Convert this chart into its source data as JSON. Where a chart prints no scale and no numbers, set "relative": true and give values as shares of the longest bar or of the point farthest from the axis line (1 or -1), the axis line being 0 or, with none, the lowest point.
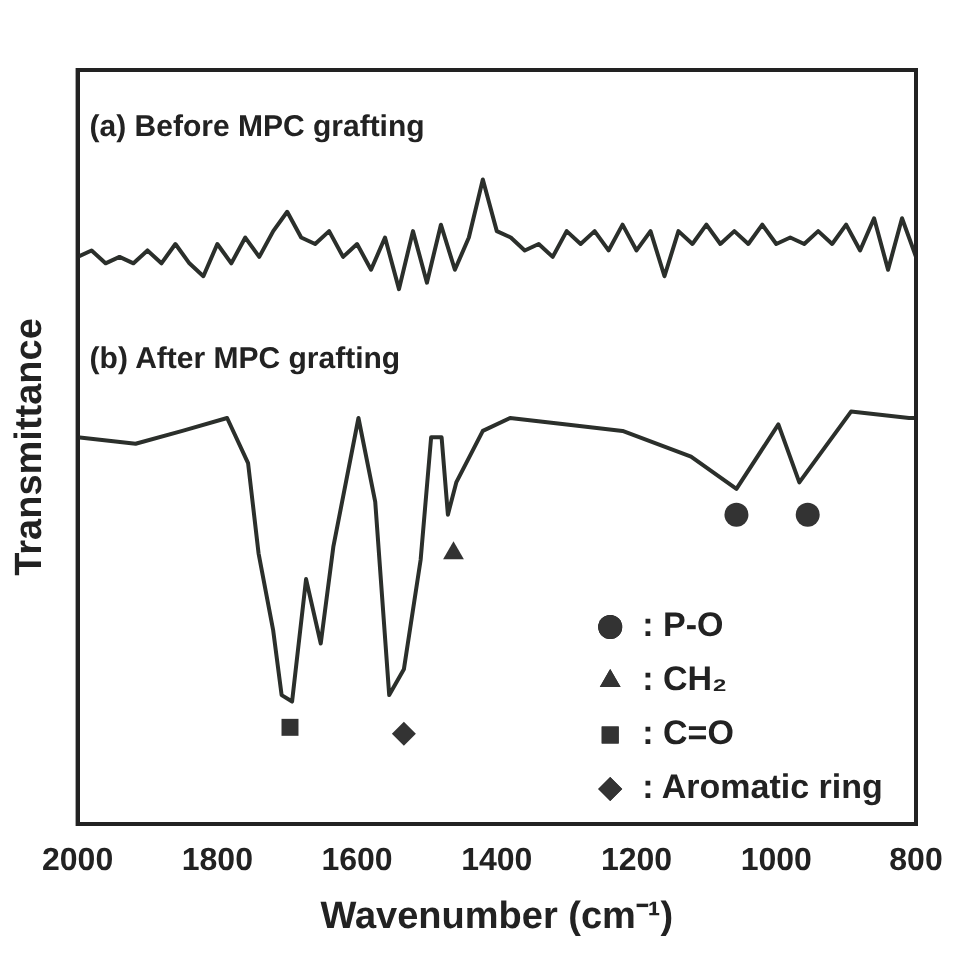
{
  "chart_data": {
    "type": "line",
    "relative": true,
    "xlabel": "Wavenumber (cm⁻¹)",
    "ylabel": "Transmittance",
    "xlim": [
      2000,
      800
    ],
    "xticks": [
      2000,
      1800,
      1600,
      1400,
      1200,
      1000,
      800
    ],
    "grid": false,
    "legend": "bottom right",
    "line_style": "solid",
    "marker": "none",
    "series": [
      {
        "name": "(a) Before MPC grafting",
        "color": "#2b2f2b",
        "x": [
          2000,
          1980,
          1960,
          1940,
          1920,
          1900,
          1880,
          1860,
          1840,
          1820,
          1800,
          1780,
          1760,
          1740,
          1720,
          1700,
          1680,
          1660,
          1640,
          1620,
          1600,
          1580,
          1560,
          1540,
          1520,
          1500,
          1480,
          1460,
          1440,
          1420,
          1400,
          1380,
          1360,
          1340,
          1320,
          1300,
          1280,
          1260,
          1240,
          1220,
          1200,
          1180,
          1160,
          1140,
          1120,
          1100,
          1080,
          1060,
          1040,
          1020,
          1000,
          980,
          960,
          940,
          920,
          900,
          880,
          860,
          840,
          820,
          800
        ],
        "values": [
          0.88,
          0.89,
          0.87,
          0.88,
          0.87,
          0.89,
          0.87,
          0.9,
          0.87,
          0.85,
          0.9,
          0.87,
          0.91,
          0.88,
          0.92,
          0.95,
          0.91,
          0.9,
          0.92,
          0.88,
          0.9,
          0.86,
          0.91,
          0.83,
          0.92,
          0.84,
          0.93,
          0.86,
          0.91,
          1.0,
          0.92,
          0.91,
          0.89,
          0.9,
          0.88,
          0.92,
          0.9,
          0.92,
          0.89,
          0.93,
          0.89,
          0.92,
          0.85,
          0.92,
          0.9,
          0.93,
          0.9,
          0.92,
          0.9,
          0.93,
          0.9,
          0.91,
          0.9,
          0.92,
          0.9,
          0.93,
          0.89,
          0.94,
          0.86,
          0.94,
          0.88
        ]
      },
      {
        "name": "(b) After MPC grafting",
        "color": "#2b2f2b",
        "x": [
          2000,
          1917,
          1850,
          1786,
          1756,
          1741,
          1720,
          1708,
          1693,
          1673,
          1652,
          1634,
          1598,
          1574,
          1554,
          1533,
          1509,
          1494,
          1479,
          1470,
          1458,
          1420,
          1381,
          1300,
          1220,
          1122,
          1057,
          997,
          967,
          893,
          810,
          800
        ],
        "values": [
          0.6,
          0.59,
          0.61,
          0.63,
          0.56,
          0.42,
          0.3,
          0.2,
          0.19,
          0.38,
          0.28,
          0.43,
          0.63,
          0.5,
          0.2,
          0.24,
          0.41,
          0.6,
          0.6,
          0.48,
          0.53,
          0.61,
          0.63,
          0.62,
          0.61,
          0.57,
          0.52,
          0.62,
          0.53,
          0.64,
          0.63,
          0.63
        ]
      },
      {
        "name": ": P-O",
        "type": "scatter",
        "marker": "circle",
        "color": "#333333",
        "x": [
          1057,
          955
        ],
        "values": [
          0.48,
          0.48
        ]
      },
      {
        "name": ": CH₂",
        "type": "scatter",
        "marker": "triangle",
        "color": "#333333",
        "x": [
          1462
        ],
        "values": [
          0.42
        ]
      },
      {
        "name": ": C=O",
        "type": "scatter",
        "marker": "square",
        "color": "#333333",
        "x": [
          1696
        ],
        "values": [
          0.15
        ]
      },
      {
        "name": ": Aromatic ring",
        "type": "scatter",
        "marker": "diamond",
        "color": "#333333",
        "x": [
          1533
        ],
        "values": [
          0.14
        ]
      }
    ]
  }
}
